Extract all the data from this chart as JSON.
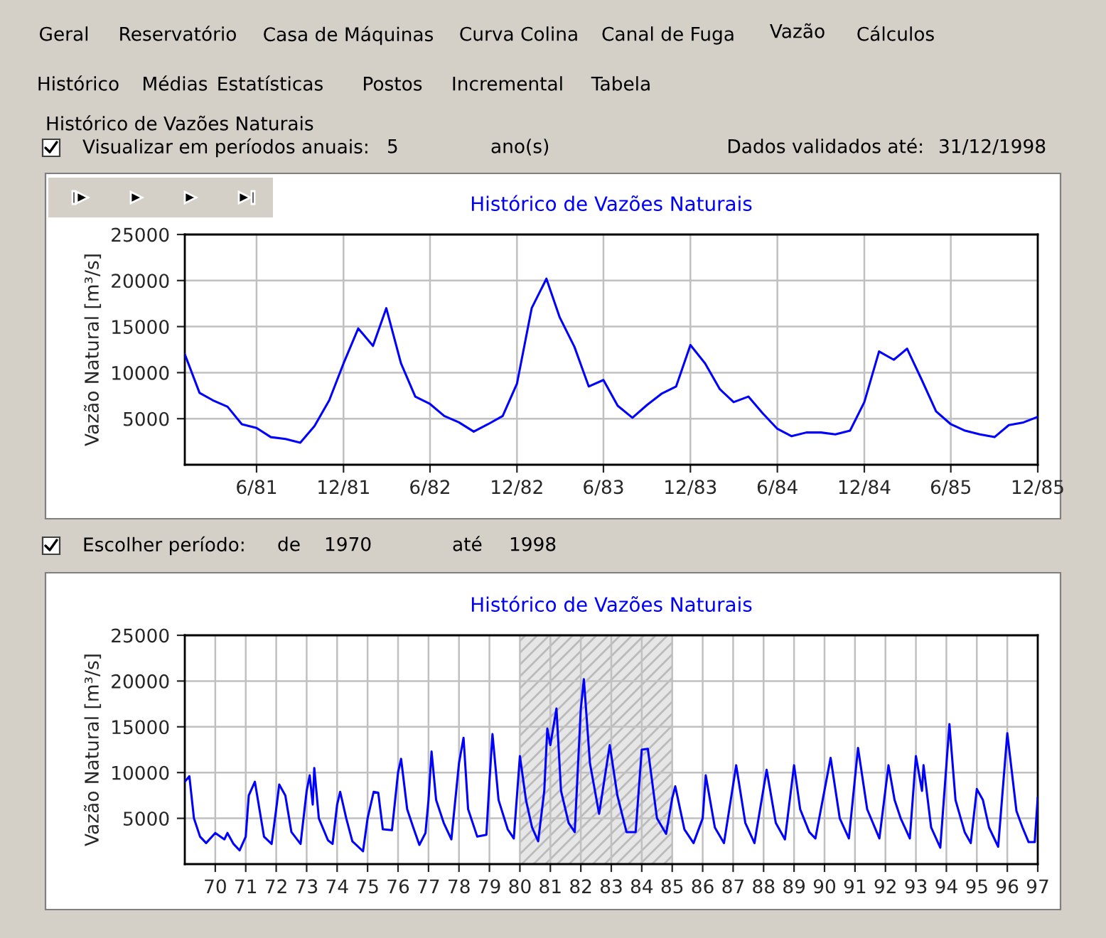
{
  "chart_data": [
    {
      "type": "other",
      "annotations": [
        "Geral",
        "Reservatório",
        "Casa de Máquinas",
        "Curva Colina",
        "Canal de Fuga",
        "Vazão",
        "Cálculos",
        "Histórico",
        "Médias",
        "Estatísticas",
        "Postos",
        "Incremental",
        "Tabela",
        "Histórico de Vazões Naturais",
        "Visualizar em períodos anuais:",
        "5",
        "ano(s)",
        "Dados validados até:",
        "31/12/1998"
      ]
    },
    {
      "type": "line",
      "title": "Histórico de Vazões Naturais",
      "ylabel": "Vazão Natural [m³/s]",
      "grid": true,
      "x": [
        "1981-01",
        "1981-02",
        "1981-03",
        "1981-04",
        "1981-05",
        "1981-06",
        "1981-07",
        "1981-08",
        "1981-09",
        "1981-10",
        "1981-11",
        "1981-12",
        "1982-01",
        "1982-02",
        "1982-03",
        "1982-04",
        "1982-05",
        "1982-06",
        "1982-07",
        "1982-08",
        "1982-09",
        "1982-10",
        "1982-11",
        "1982-12",
        "1983-01",
        "1983-02",
        "1983-03",
        "1983-04",
        "1983-05",
        "1983-06",
        "1983-07",
        "1983-08",
        "1983-09",
        "1983-10",
        "1983-11",
        "1983-12",
        "1984-01",
        "1984-02",
        "1984-03",
        "1984-04",
        "1984-05",
        "1984-06",
        "1984-07",
        "1984-08",
        "1984-09",
        "1984-10",
        "1984-11",
        "1984-12",
        "1985-01",
        "1985-02",
        "1985-03",
        "1985-04",
        "1985-05",
        "1985-06",
        "1985-07",
        "1985-08",
        "1985-09",
        "1985-10",
        "1985-11",
        "1985-12"
      ],
      "series": [
        {
          "color": "#0000ff",
          "values": [
            12000,
            7800,
            7000,
            6300,
            4400,
            4000,
            3000,
            2800,
            2400,
            4200,
            7000,
            11000,
            14800,
            12900,
            17000,
            11000,
            7400,
            6600,
            5300,
            4600,
            3600,
            4400,
            5300,
            8800,
            17000,
            20200,
            16000,
            12800,
            8500,
            9200,
            6400,
            5100,
            6500,
            7700,
            8500,
            13000,
            11000,
            8200,
            6800,
            7400,
            5600,
            3900,
            3100,
            3500,
            3500,
            3300,
            3700,
            6800,
            12300,
            11400,
            12600,
            9200,
            5800,
            4400,
            3700,
            3300,
            3000,
            4300,
            4600,
            5200
          ]
        }
      ],
      "xlim": [
        "1981-01",
        "1985-12"
      ],
      "xticks": [
        {
          "value": "1981-06",
          "label": "6/81"
        },
        {
          "value": "1981-12",
          "label": "12/81"
        },
        {
          "value": "1982-06",
          "label": "6/82"
        },
        {
          "value": "1982-12",
          "label": "12/82"
        },
        {
          "value": "1983-06",
          "label": "6/83"
        },
        {
          "value": "1983-12",
          "label": "12/83"
        },
        {
          "value": "1984-06",
          "label": "6/84"
        },
        {
          "value": "1984-12",
          "label": "12/84"
        },
        {
          "value": "1985-06",
          "label": "6/85"
        },
        {
          "value": "1985-12",
          "label": "12/85"
        }
      ],
      "ylim": [
        0,
        25000
      ],
      "yticks": [
        5000,
        10000,
        15000,
        20000,
        25000
      ]
    },
    {
      "type": "other",
      "annotations": [
        "Escolher período:",
        "de",
        "1970",
        "até",
        "1998"
      ]
    },
    {
      "type": "line",
      "title": "Histórico de Vazões Naturais",
      "ylabel": "Vazão Natural [m³/s]",
      "grid": true,
      "x": [
        1969.0,
        1969.15,
        1969.3,
        1969.5,
        1969.7,
        1970.0,
        1970.3,
        1970.4,
        1970.6,
        1970.8,
        1971.0,
        1971.1,
        1971.3,
        1971.5,
        1971.6,
        1971.85,
        1972.0,
        1972.1,
        1972.3,
        1972.5,
        1972.8,
        1973.0,
        1973.1,
        1973.2,
        1973.25,
        1973.4,
        1973.7,
        1973.85,
        1974.0,
        1974.1,
        1974.3,
        1974.5,
        1974.85,
        1975.0,
        1975.2,
        1975.35,
        1975.5,
        1975.8,
        1976.0,
        1976.1,
        1976.3,
        1976.5,
        1976.7,
        1976.9,
        1977.0,
        1977.1,
        1977.25,
        1977.5,
        1977.75,
        1978.0,
        1978.15,
        1978.3,
        1978.6,
        1978.9,
        1979.0,
        1979.1,
        1979.3,
        1979.6,
        1979.8,
        1980.0,
        1980.2,
        1980.4,
        1980.6,
        1980.8,
        1980.9,
        1981.0,
        1981.2,
        1981.35,
        1981.6,
        1981.8,
        1982.0,
        1982.1,
        1982.3,
        1982.6,
        1982.95,
        1983.2,
        1983.5,
        1983.8,
        1984.0,
        1984.2,
        1984.5,
        1984.8,
        1985.0,
        1985.1,
        1985.4,
        1985.7,
        1986.0,
        1986.1,
        1986.4,
        1986.7,
        1987.1,
        1987.4,
        1987.7,
        1988.1,
        1988.4,
        1988.7,
        1989.0,
        1989.2,
        1989.5,
        1989.7,
        1990.2,
        1990.5,
        1990.8,
        1991.1,
        1991.4,
        1991.8,
        1992.1,
        1992.3,
        1992.5,
        1992.8,
        1993.0,
        1993.2,
        1993.25,
        1993.5,
        1993.8,
        1994.1,
        1994.3,
        1994.6,
        1994.8,
        1995.0,
        1995.2,
        1995.4,
        1995.7,
        1996.0,
        1996.3,
        1996.5,
        1996.7,
        1996.9,
        1997.0
      ],
      "series": [
        {
          "color": "#0000ff",
          "values": [
            9000,
            9600,
            5000,
            3000,
            2300,
            3400,
            2700,
            3400,
            2200,
            1500,
            3000,
            7500,
            9000,
            5000,
            3000,
            2200,
            6000,
            8700,
            7500,
            3500,
            2200,
            8000,
            9700,
            6500,
            10500,
            5000,
            2600,
            2200,
            6500,
            7900,
            5000,
            2500,
            1400,
            5000,
            7900,
            7800,
            3800,
            3700,
            10000,
            11500,
            6000,
            4000,
            2100,
            3400,
            7000,
            12300,
            7000,
            4500,
            2700,
            11000,
            13800,
            6000,
            3000,
            3200,
            9000,
            14200,
            7000,
            3800,
            2800,
            11800,
            7000,
            4000,
            2500,
            8000,
            14800,
            13000,
            17000,
            8000,
            4500,
            3500,
            17000,
            20200,
            11000,
            5500,
            13000,
            7500,
            3500,
            3500,
            12500,
            12600,
            5000,
            3300,
            7200,
            8500,
            3800,
            2300,
            5000,
            9700,
            4000,
            2300,
            10800,
            4500,
            2300,
            10300,
            4500,
            2700,
            10800,
            6000,
            3500,
            2800,
            11600,
            5000,
            2800,
            12700,
            6000,
            2800,
            10800,
            7000,
            5000,
            2800,
            11800,
            8000,
            10800,
            4000,
            1800,
            15300,
            7000,
            3500,
            2300,
            8200,
            7000,
            4000,
            1900,
            14300,
            5800,
            4000,
            2400,
            2400,
            7300
          ]
        }
      ],
      "xlim": [
        1969,
        1997
      ],
      "xticks": [
        {
          "value": 1970,
          "label": "70"
        },
        {
          "value": 1971,
          "label": "71"
        },
        {
          "value": 1972,
          "label": "72"
        },
        {
          "value": 1973,
          "label": "73"
        },
        {
          "value": 1974,
          "label": "74"
        },
        {
          "value": 1975,
          "label": "75"
        },
        {
          "value": 1976,
          "label": "76"
        },
        {
          "value": 1977,
          "label": "77"
        },
        {
          "value": 1978,
          "label": "78"
        },
        {
          "value": 1979,
          "label": "79"
        },
        {
          "value": 1980,
          "label": "80"
        },
        {
          "value": 1981,
          "label": "81"
        },
        {
          "value": 1982,
          "label": "82"
        },
        {
          "value": 1983,
          "label": "83"
        },
        {
          "value": 1984,
          "label": "84"
        },
        {
          "value": 1985,
          "label": "85"
        },
        {
          "value": 1986,
          "label": "86"
        },
        {
          "value": 1987,
          "label": "87"
        },
        {
          "value": 1988,
          "label": "88"
        },
        {
          "value": 1989,
          "label": "89"
        },
        {
          "value": 1990,
          "label": "90"
        },
        {
          "value": 1991,
          "label": "91"
        },
        {
          "value": 1992,
          "label": "92"
        },
        {
          "value": 1993,
          "label": "93"
        },
        {
          "value": 1994,
          "label": "94"
        },
        {
          "value": 1995,
          "label": "95"
        },
        {
          "value": 1996,
          "label": "96"
        },
        {
          "value": 1997,
          "label": "97"
        }
      ],
      "ylim": [
        0,
        25000
      ],
      "yticks": [
        5000,
        10000,
        15000,
        20000,
        25000
      ],
      "bands": [
        {
          "axis": "x",
          "from": 1980,
          "to": 1985,
          "color": "#e6e6e6"
        }
      ]
    }
  ]
}
